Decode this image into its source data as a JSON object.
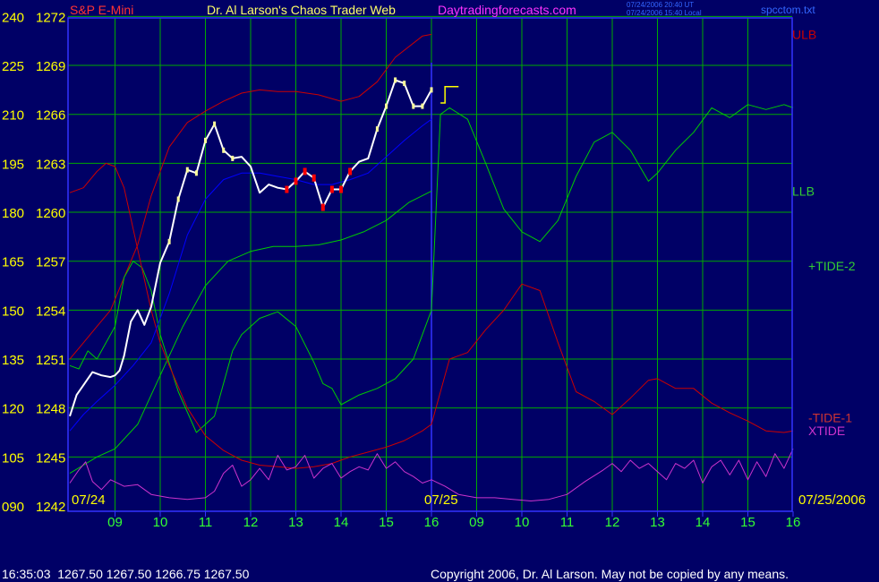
{
  "header": {
    "symbol": "S&P E-Mini",
    "title": "Dr. Al Larson's Chaos Trader Web",
    "site": "Daytradingforecasts.com",
    "stamp_line1": "07/24/2006 20:40 UT",
    "stamp_line2": "07/24/2006 15:40 Local",
    "file": "spcctom.txt"
  },
  "footer": {
    "quote": "16:35:03  1267.50 1267.50 1266.75 1267.50",
    "copyright": "Copyright 2006, Dr. Al Larson. May not be copied by any means."
  },
  "colors": {
    "background": "#000066",
    "grid": "#00aa00",
    "border": "#3333ff",
    "price_tick": "#ffff00",
    "time_tick": "#33ff33",
    "ulb": "#cc0000",
    "llb": "#00cc00",
    "tide2": "#00cc00",
    "tide1": "#cc0000",
    "xtide": "#cc33cc",
    "ema": "#0000ff",
    "price": "#ffffff"
  },
  "chart_data": {
    "type": "line",
    "x_labels": [
      "09",
      "10",
      "11",
      "12",
      "13",
      "14",
      "15",
      "16",
      "09",
      "10",
      "11",
      "12",
      "13",
      "14",
      "15",
      "16"
    ],
    "date_labels": [
      "07/24",
      "07/25",
      "07/25/2006"
    ],
    "left_axis": [
      "090",
      "105",
      "120",
      "135",
      "150",
      "165",
      "180",
      "195",
      "210",
      "225",
      "240"
    ],
    "price_axis": [
      "1242",
      "1245",
      "1248",
      "1251",
      "1254",
      "1257",
      "1260",
      "1263",
      "1266",
      "1269",
      "1272"
    ],
    "ylim": [
      1242,
      1272
    ],
    "grid": true,
    "legend_labels": [
      {
        "name": "ULB",
        "color": "#cc0000",
        "level": 1270.9
      },
      {
        "name": "LLB",
        "color": "#33cc33",
        "level": 1261.3
      },
      {
        "name": "+TIDE-2",
        "color": "#33cc33",
        "level": 1256.7
      },
      {
        "name": "-TIDE-1",
        "color": "#cc3333",
        "level": 1247.4
      },
      {
        "name": "XTIDE",
        "color": "#cc33cc",
        "level": 1246.6
      }
    ],
    "series": [
      {
        "name": "ULB",
        "color": "#cc0000",
        "x": [
          0,
          0.3,
          0.6,
          0.9,
          1.2,
          1.5,
          1.8,
          2.2,
          2.6,
          3.0,
          3.4,
          3.8,
          4.2,
          4.6,
          5.0,
          5.5,
          6.0,
          6.4,
          6.8,
          7.2,
          7.8,
          8.0
        ],
        "y": [
          1251,
          1252,
          1253,
          1254,
          1256,
          1258,
          1261,
          1264,
          1265.5,
          1266.2,
          1266.8,
          1267.3,
          1267.5,
          1267.4,
          1267.4,
          1267.2,
          1266.8,
          1267.1,
          1268,
          1269.5,
          1270.8,
          1270.9
        ]
      },
      {
        "name": "LLB",
        "color": "#00cc00",
        "x": [
          0,
          0.3,
          0.6,
          1.0,
          1.5,
          2.0,
          2.5,
          3.0,
          3.5,
          4.0,
          4.5,
          5.0,
          5.5,
          6.0,
          6.5,
          7.0,
          7.5,
          8.0
        ],
        "y": [
          1244,
          1244.5,
          1245,
          1245.5,
          1247,
          1250,
          1253,
          1255.5,
          1257,
          1257.6,
          1257.9,
          1257.9,
          1258,
          1258.3,
          1258.8,
          1259.5,
          1260.6,
          1261.3
        ]
      },
      {
        "name": "+TIDE-2",
        "color": "#00cc00",
        "x": [
          0,
          0.2,
          0.4,
          0.6,
          0.8,
          1.0,
          1.2,
          1.4,
          1.6,
          1.8,
          2.0,
          2.4,
          2.8,
          3.2,
          3.4,
          3.6,
          3.8,
          4.2,
          4.6,
          5.0,
          5.4,
          5.6,
          5.8,
          6.0,
          6.4,
          6.8,
          7.2,
          7.6,
          7.8,
          8.0,
          8.2,
          8.4,
          8.8,
          9.2,
          9.6,
          10.0,
          10.4,
          10.8,
          11.2,
          11.6,
          12.0,
          12.4,
          12.8,
          13.0,
          13.4,
          13.8,
          14.2,
          14.6,
          15.0,
          15.4,
          15.8,
          16.0
        ],
        "y": [
          1250.6,
          1250.4,
          1251.5,
          1251,
          1252,
          1253,
          1256,
          1257,
          1256.6,
          1255.2,
          1252.5,
          1249,
          1246.5,
          1247.5,
          1249.5,
          1251.5,
          1252.5,
          1253.5,
          1253.9,
          1253,
          1250.8,
          1249.5,
          1249.2,
          1248.2,
          1248.8,
          1249.2,
          1249.8,
          1251,
          1252.5,
          1254,
          1266,
          1266.4,
          1265.7,
          1263,
          1260.2,
          1258.8,
          1258.2,
          1259.5,
          1262.2,
          1264.3,
          1264.9,
          1263.8,
          1261.9,
          1262.4,
          1263.8,
          1264.9,
          1266.4,
          1265.8,
          1266.6,
          1266.3,
          1266.6,
          1266.4
        ]
      },
      {
        "name": "-TIDE-1",
        "color": "#cc0000",
        "x": [
          0,
          0.3,
          0.6,
          0.8,
          1.0,
          1.2,
          1.4,
          1.6,
          1.8,
          2.0,
          2.2,
          2.6,
          3.0,
          3.4,
          3.8,
          4.2,
          4.6,
          5.0,
          5.4,
          5.8,
          6.2,
          6.6,
          7.0,
          7.4,
          7.8,
          8.0,
          8.4,
          8.8,
          9.2,
          9.6,
          10.0,
          10.4,
          10.8,
          11.2,
          11.6,
          12.0,
          12.4,
          12.8,
          13.0,
          13.4,
          13.8,
          14.2,
          14.6,
          15.0,
          15.4,
          15.8,
          16.0
        ],
        "y": [
          1261.2,
          1261.5,
          1262.5,
          1263,
          1262.8,
          1261.5,
          1259,
          1256.5,
          1254,
          1252,
          1250.6,
          1248,
          1246.3,
          1245.4,
          1244.8,
          1244.5,
          1244.4,
          1244.3,
          1244.4,
          1244.6,
          1245,
          1245.3,
          1245.6,
          1246,
          1246.6,
          1247,
          1251,
          1251.4,
          1252.8,
          1254,
          1255.6,
          1255.2,
          1252,
          1249,
          1248.4,
          1247.6,
          1248.6,
          1249.7,
          1249.8,
          1249.2,
          1249.2,
          1248.3,
          1247.7,
          1247.2,
          1246.6,
          1246.5,
          1246.6
        ]
      },
      {
        "name": "XTIDE",
        "color": "#cc33cc",
        "x": [
          0,
          0.2,
          0.35,
          0.5,
          0.7,
          0.9,
          1.2,
          1.5,
          1.8,
          2.2,
          2.6,
          3.0,
          3.2,
          3.4,
          3.6,
          3.8,
          4.0,
          4.2,
          4.4,
          4.6,
          4.8,
          5.0,
          5.2,
          5.4,
          5.6,
          5.8,
          6.0,
          6.2,
          6.4,
          6.6,
          6.8,
          7.0,
          7.2,
          7.4,
          7.6,
          7.8,
          8.0,
          8.3,
          8.6,
          9.0,
          9.4,
          9.8,
          10.2,
          10.6,
          11.0,
          11.4,
          11.8,
          12.0,
          12.2,
          12.4,
          12.6,
          12.8,
          13.0,
          13.2,
          13.4,
          13.6,
          13.8,
          14.0,
          14.2,
          14.4,
          14.6,
          14.8,
          15.0,
          15.2,
          15.4,
          15.6,
          15.8,
          16.0
        ],
        "y": [
          1243.4,
          1244.2,
          1244.7,
          1243.5,
          1243,
          1243.6,
          1243.2,
          1243.3,
          1242.7,
          1242.5,
          1242.4,
          1242.5,
          1242.9,
          1244,
          1244.5,
          1243.2,
          1243.6,
          1244.3,
          1243.6,
          1245.1,
          1244.2,
          1244.4,
          1245.1,
          1243.7,
          1244.3,
          1244.6,
          1243.7,
          1244.1,
          1244.4,
          1244.2,
          1245.2,
          1244.3,
          1244.7,
          1244.1,
          1243.8,
          1243.4,
          1243.6,
          1243.2,
          1242.7,
          1242.5,
          1242.5,
          1242.4,
          1242.3,
          1242.4,
          1242.7,
          1243.5,
          1244.2,
          1244.6,
          1244.1,
          1244.8,
          1244.3,
          1244.6,
          1244.1,
          1243.6,
          1244.6,
          1244.3,
          1244.8,
          1243.4,
          1244.4,
          1244.8,
          1243.9,
          1244.8,
          1243.6,
          1244.7,
          1243.8,
          1245.2,
          1244.3,
          1245.5
        ]
      },
      {
        "name": "EMA",
        "color": "#0000ff",
        "x": [
          0,
          0.3,
          0.6,
          1.0,
          1.4,
          1.8,
          2.2,
          2.6,
          3.0,
          3.4,
          3.8,
          4.2,
          4.6,
          5.0,
          5.4,
          5.8,
          6.2,
          6.6,
          7.0,
          7.4,
          7.8,
          8.0
        ],
        "y": [
          1246.6,
          1247.6,
          1248.4,
          1249.4,
          1250.6,
          1252,
          1255,
          1258.6,
          1260.8,
          1262,
          1262.4,
          1262.4,
          1262.2,
          1262,
          1261.7,
          1261.7,
          1262,
          1262.4,
          1263.4,
          1264.4,
          1265.3,
          1265.7
        ]
      },
      {
        "name": "Price",
        "color": "#ffffff",
        "x": [
          0,
          0.15,
          0.3,
          0.5,
          0.7,
          0.9,
          1.0,
          1.1,
          1.2,
          1.35,
          1.5,
          1.65,
          1.8,
          2.0,
          2.2,
          2.4,
          2.6,
          2.8,
          3.0,
          3.2,
          3.4,
          3.6,
          3.8,
          4.0,
          4.2,
          4.4,
          4.6,
          4.8,
          5.0,
          5.2,
          5.4,
          5.6,
          5.8,
          6.0,
          6.2,
          6.4,
          6.6,
          6.8,
          7.0,
          7.2,
          7.4,
          7.6,
          7.8,
          8.0
        ],
        "y": [
          1247.5,
          1248.8,
          1249.4,
          1250.2,
          1250,
          1249.9,
          1250,
          1250.3,
          1251.2,
          1253.3,
          1254,
          1253.1,
          1254.2,
          1256.9,
          1258.2,
          1260.8,
          1262.6,
          1262.4,
          1264.4,
          1265.4,
          1263.8,
          1263.3,
          1263.4,
          1262.8,
          1261.2,
          1261.7,
          1261.5,
          1261.4,
          1261.9,
          1262.5,
          1262.1,
          1260.3,
          1261.4,
          1261.4,
          1262.5,
          1263.1,
          1263.3,
          1265.1,
          1266.5,
          1268.1,
          1267.9,
          1266.5,
          1266.5,
          1267.5
        ]
      }
    ]
  }
}
